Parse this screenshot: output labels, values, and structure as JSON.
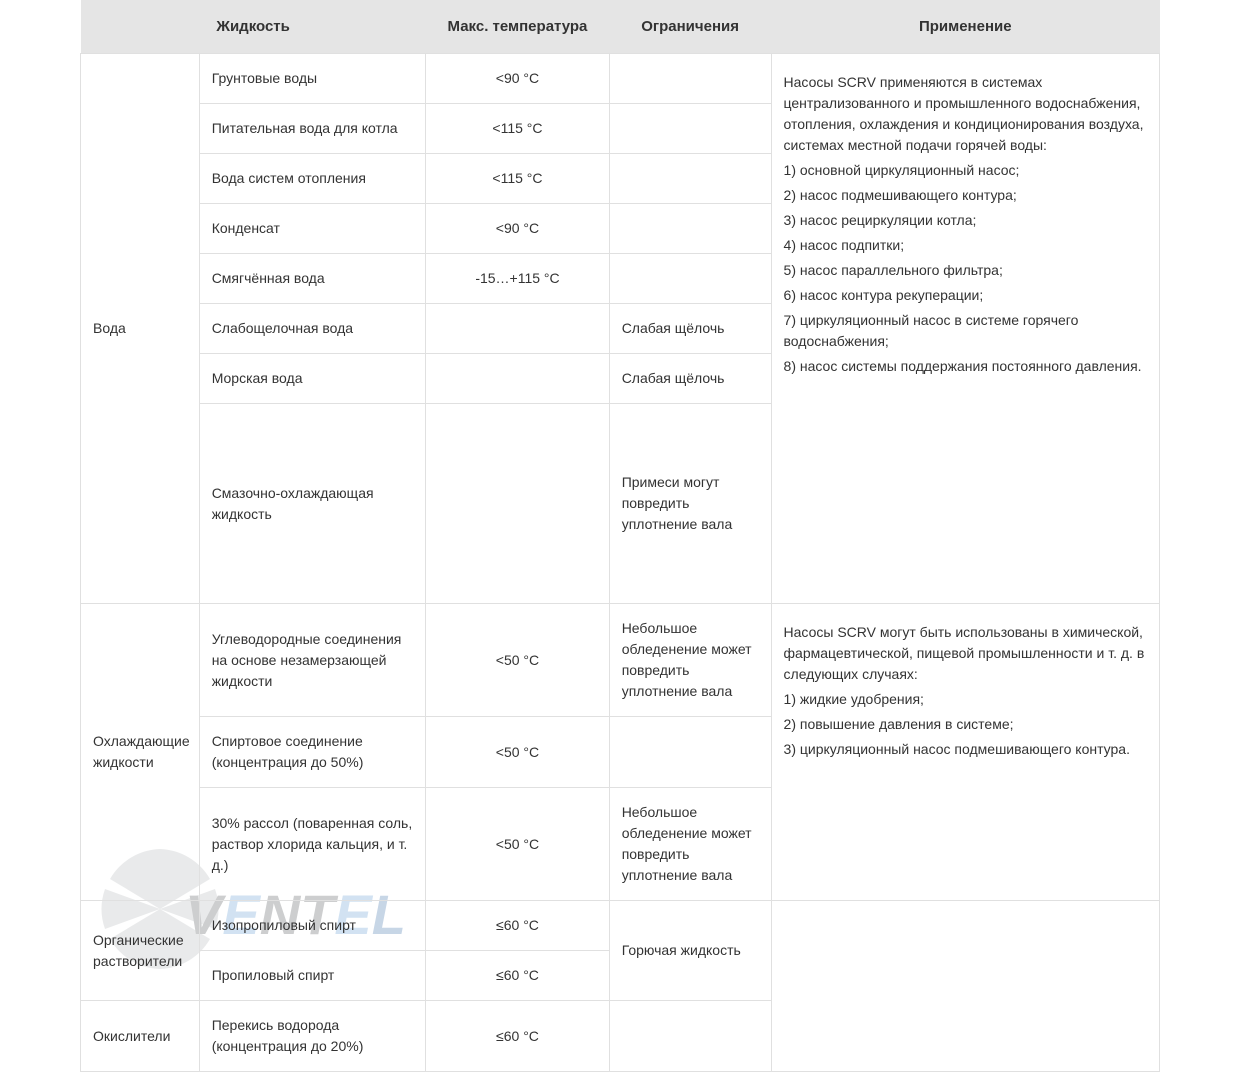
{
  "headers": {
    "liquid": "Жидкость",
    "maxtemp": "Макс. температура",
    "limits": "Ограничения",
    "application": "Применение"
  },
  "categories": [
    {
      "name": "Вода",
      "rows": [
        {
          "liquid": "Грунтовые воды",
          "temp": "<90 °C",
          "limit": ""
        },
        {
          "liquid": "Питательная вода для котла",
          "temp": "<115 °C",
          "limit": ""
        },
        {
          "liquid": "Вода систем отопления",
          "temp": "<115 °C",
          "limit": ""
        },
        {
          "liquid": "Конденсат",
          "temp": "<90 °C",
          "limit": ""
        },
        {
          "liquid": "Смягчённая вода",
          "temp": "-15…+115 °C",
          "limit": ""
        },
        {
          "liquid": "Слабощелочная вода",
          "temp": "",
          "limit": "Слабая щёлочь"
        },
        {
          "liquid": "Морская вода",
          "temp": "",
          "limit": "Слабая щёлочь"
        },
        {
          "liquid": "Смазочно-охлаждающая жидкость",
          "temp": "",
          "limit": "Примеси могут повредить уплотнение вала",
          "tall": true
        }
      ],
      "application": "Насосы SCRV применяются в системах централизованного и промышленного водоснабжения, отопления, охлаждения и кондиционирования воздуха, системах местной подачи горячей воды:\n1) основной циркуляционный насос;\n2) насос подмешивающего контура;\n3) насос рециркуляции котла;\n4) насос подпитки;\n5) насос параллельного фильтра;\n6) насос контура рекуперации;\n7) циркуляционный насос в системе горячего водоснабжения;\n8) насос системы поддержания постоянного давления."
    },
    {
      "name": "Охлаждающие жидкости",
      "rows": [
        {
          "liquid": "Углеводородные соединения на основе незамерзающей жидкости",
          "temp": "<50 °C",
          "limit": "Небольшое обледенение может повредить уплотнение вала"
        },
        {
          "liquid": "Спиртовое соединение (концентрация до 50%)",
          "temp": "<50 °C",
          "limit": ""
        },
        {
          "liquid": "30% рассол (поваренная соль, раствор хлорида кальция, и т. д.)",
          "temp": "<50 °C",
          "limit": "Небольшое обледенение может повредить уплотнение вала"
        }
      ],
      "application": "Насосы SCRV могут быть использованы в химической, фармацевтической, пищевой промышленности и т. д. в следующих случаях:\n1) жидкие удобрения;\n2) повышение давления в системе;\n3) циркуляционный насос подмешивающего контура."
    },
    {
      "name": "Органические растворители",
      "rows": [
        {
          "liquid": "Изопропиловый спирт",
          "temp": "≤60 °C"
        },
        {
          "liquid": "Пропиловый спирт",
          "temp": "≤60 °C"
        }
      ],
      "sharedLimit": "Горючая жидкость",
      "application": ""
    },
    {
      "name": "Окислители",
      "rows": [
        {
          "liquid": "Перекись водорода (концентрация до 20%)",
          "temp": "≤60 °C",
          "limit": ""
        }
      ],
      "application": ""
    }
  ],
  "watermark": {
    "text": "VENTEL",
    "fan_color": "#b9bcbe",
    "text_color_v": "#5c5f63",
    "text_color_e": "#6ca2d6",
    "text_color_l": "#4a7ab0"
  }
}
